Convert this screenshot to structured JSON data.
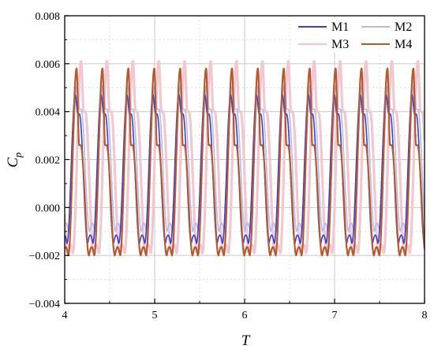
{
  "chart_data": {
    "type": "line",
    "title": "",
    "xlabel": "T",
    "ylabel": {
      "main": "C",
      "sub": "p"
    },
    "xlim": [
      4,
      8
    ],
    "ylim": [
      -0.004,
      0.008
    ],
    "xticks": [
      4,
      5,
      6,
      7,
      8
    ],
    "yticks": [
      -0.004,
      -0.002,
      0.0,
      0.002,
      0.004,
      0.006,
      0.008
    ],
    "xtick_labels": [
      "4",
      "5",
      "6",
      "7",
      "8"
    ],
    "ytick_labels": [
      "−0.004",
      "−0.002",
      "0.000",
      "0.002",
      "0.004",
      "0.006",
      "0.008"
    ],
    "grid": true,
    "legend_position": "top-right",
    "legend_columns": 2,
    "period": 0.288,
    "series": [
      {
        "name": "M1",
        "color": "#3b3bd6",
        "phase": 4.025,
        "max": 0.0047,
        "mid": 0.0039,
        "min": -0.0015
      },
      {
        "name": "M2",
        "color": "#b7b9e8",
        "phase": 4.045,
        "max": 0.0051,
        "mid": 0.0041,
        "min": -0.001
      },
      {
        "name": "M3",
        "color": "#f2c7cf",
        "phase": 4.09,
        "max": 0.0061,
        "mid": 0.004,
        "min": -0.0019
      },
      {
        "name": "M4",
        "color": "#b5592e",
        "phase": 4.04,
        "max": 0.0058,
        "mid": 0.0026,
        "min": -0.002
      }
    ]
  }
}
